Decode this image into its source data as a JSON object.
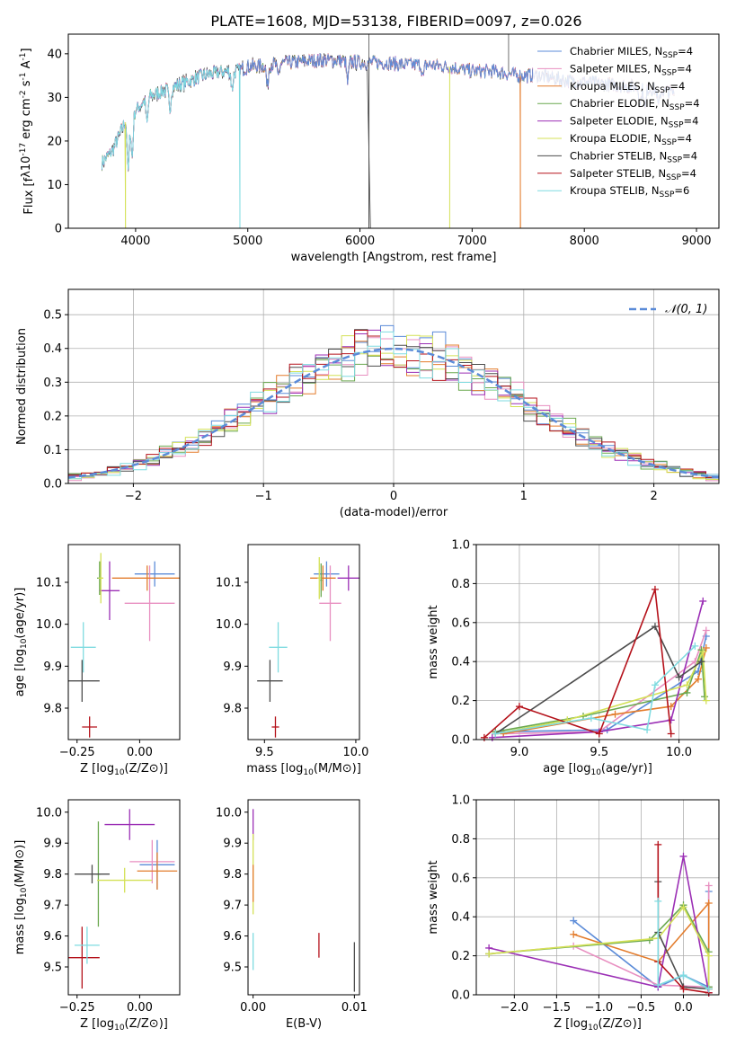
{
  "figure_title": "PLATE=1608, MJD=53138, FIBERID=0097, z=0.026",
  "colors": {
    "chabrier_miles": "#5b8bd8",
    "salpeter_miles": "#e88fc0",
    "kroupa_miles": "#e37c2c",
    "chabrier_elodie": "#6aa84f",
    "salpeter_elodie": "#9b2fb5",
    "kroupa_elodie": "#d4e157",
    "chabrier_stelib": "#4d4d4d",
    "salpeter_stelib": "#b5121b",
    "kroupa_stelib": "#7fdbe0",
    "gaussian": "#5b8bd8"
  },
  "chart_data": [
    {
      "id": "spectrum",
      "type": "line",
      "xlabel": "wavelength [Angstrom, rest frame]",
      "ylabel": "Flux [f_λ10^{-17} erg cm^{-2} s^{-1} A^{-1}]",
      "xlim": [
        3400,
        9200
      ],
      "ylim": [
        0,
        44.5
      ],
      "xticks": [
        4000,
        5000,
        6000,
        7000,
        8000,
        9000
      ],
      "yticks": [
        0,
        10,
        20,
        30,
        40
      ],
      "legend_position": "top-right",
      "series": [
        {
          "name": "Chabrier MILES, N_SSP=4",
          "color_key": "chabrier_miles"
        },
        {
          "name": "Salpeter MILES, N_SSP=4",
          "color_key": "salpeter_miles"
        },
        {
          "name": "Kroupa MILES, N_SSP=4",
          "color_key": "kroupa_miles"
        },
        {
          "name": "Chabrier ELODIE, N_SSP=4",
          "color_key": "chabrier_elodie"
        },
        {
          "name": "Salpeter ELODIE, N_SSP=4",
          "color_key": "salpeter_elodie"
        },
        {
          "name": "Kroupa ELODIE, N_SSP=4",
          "color_key": "kroupa_elodie"
        },
        {
          "name": "Chabrier STELIB, N_SSP=4",
          "color_key": "chabrier_stelib"
        },
        {
          "name": "Salpeter STELIB, N_SSP=4",
          "color_key": "salpeter_stelib"
        },
        {
          "name": "Kroupa STELIB, N_SSP=6",
          "color_key": "kroupa_stelib"
        }
      ],
      "continuum": {
        "x": [
          3700,
          3800,
          3900,
          4000,
          4100,
          4200,
          4300,
          4400,
          4500,
          4600,
          4700,
          4800,
          4900,
          5000,
          5200,
          5400,
          5600,
          5800,
          6000,
          6200,
          6400,
          6600,
          6800,
          7000,
          7200,
          7400,
          7600,
          7800,
          8000,
          8200,
          8400,
          8600,
          8800
        ],
        "y": [
          15,
          18,
          24,
          27,
          30,
          31,
          32,
          33,
          34,
          35,
          35.5,
          36,
          36,
          37,
          37.5,
          38,
          38.5,
          38.5,
          38,
          38,
          37.5,
          37.5,
          37,
          36,
          36,
          35,
          35,
          34,
          33.5,
          33,
          32.5,
          32,
          31
        ]
      },
      "dropouts": [
        {
          "x": 3910,
          "color_key": "kroupa_elodie"
        },
        {
          "x": 4930,
          "color_key": "kroupa_stelib"
        },
        {
          "x": 6080,
          "color_key": "chabrier_stelib"
        },
        {
          "x": 6800,
          "color_key": "kroupa_elodie"
        },
        {
          "x": 7430,
          "color_key": "kroupa_miles"
        }
      ]
    },
    {
      "id": "residual_histogram",
      "type": "histogram",
      "xlabel": "(data-model)/error",
      "ylabel": "Normed distribution",
      "xlim": [
        -2.5,
        2.5
      ],
      "ylim": [
        0,
        0.575
      ],
      "xticks": [
        -2,
        -1,
        0,
        1,
        2
      ],
      "yticks": [
        0.0,
        0.1,
        0.2,
        0.3,
        0.4,
        0.5
      ],
      "grid": true,
      "legend_position": "top-right",
      "reference_curve": {
        "name": "𝒩(0, 1)",
        "mean": 0,
        "sigma": 1,
        "style": "dashed",
        "color_key": "gaussian"
      },
      "bin_width": 0.1
    },
    {
      "id": "age_vs_Z",
      "type": "errorbar",
      "xlabel": "Z [log10(Z/Z⊙)]",
      "ylabel": "age  [log10(age/yr)]",
      "xlim": [
        -0.285,
        0.16
      ],
      "ylim": [
        9.725,
        10.19
      ],
      "xticks": [
        -0.25,
        0.0
      ],
      "yticks": [
        9.8,
        9.9,
        10.0,
        10.1
      ],
      "points": [
        {
          "color_key": "chabrier_miles",
          "x": 0.06,
          "y": 10.12,
          "xerr": 0.08,
          "yerr": 0.03
        },
        {
          "color_key": "salpeter_miles",
          "x": 0.04,
          "y": 10.05,
          "xerr": 0.1,
          "yerr": 0.09
        },
        {
          "color_key": "kroupa_miles",
          "x": 0.03,
          "y": 10.11,
          "xerr": 0.14,
          "yerr": 0.03
        },
        {
          "color_key": "chabrier_elodie",
          "x": -0.16,
          "y": 10.11,
          "xerr": 0.01,
          "yerr": 0.04
        },
        {
          "color_key": "salpeter_elodie",
          "x": -0.12,
          "y": 10.08,
          "xerr": 0.04,
          "yerr": 0.07
        },
        {
          "color_key": "kroupa_elodie",
          "x": -0.155,
          "y": 10.11,
          "xerr": 0.01,
          "yerr": 0.06
        },
        {
          "color_key": "chabrier_stelib",
          "x": -0.23,
          "y": 9.865,
          "xerr": 0.07,
          "yerr": 0.05
        },
        {
          "color_key": "salpeter_stelib",
          "x": -0.2,
          "y": 9.755,
          "xerr": 0.03,
          "yerr": 0.025
        },
        {
          "color_key": "kroupa_stelib",
          "x": -0.225,
          "y": 9.945,
          "xerr": 0.05,
          "yerr": 0.06
        }
      ]
    },
    {
      "id": "age_vs_mass",
      "type": "errorbar",
      "xlabel": "mass [log10(M/M⊙)]",
      "ylabel": "",
      "xlim": [
        9.41,
        10.02
      ],
      "ylim": [
        9.725,
        10.19
      ],
      "xticks": [
        9.5,
        10.0
      ],
      "yticks": [
        9.8,
        9.9,
        10.0,
        10.1
      ],
      "points": [
        {
          "color_key": "chabrier_miles",
          "x": 9.84,
          "y": 10.12,
          "xerr": 0.07,
          "yerr": 0.03
        },
        {
          "color_key": "salpeter_miles",
          "x": 9.86,
          "y": 10.05,
          "xerr": 0.06,
          "yerr": 0.09
        },
        {
          "color_key": "kroupa_miles",
          "x": 9.82,
          "y": 10.11,
          "xerr": 0.07,
          "yerr": 0.03
        },
        {
          "color_key": "chabrier_elodie",
          "x": 9.81,
          "y": 10.105,
          "xerr": 0.005,
          "yerr": 0.04
        },
        {
          "color_key": "salpeter_elodie",
          "x": 9.96,
          "y": 10.11,
          "xerr": 0.06,
          "yerr": 0.03
        },
        {
          "color_key": "kroupa_elodie",
          "x": 9.8,
          "y": 10.11,
          "xerr": 0.01,
          "yerr": 0.05
        },
        {
          "color_key": "chabrier_stelib",
          "x": 9.53,
          "y": 9.865,
          "xerr": 0.07,
          "yerr": 0.05
        },
        {
          "color_key": "salpeter_stelib",
          "x": 9.56,
          "y": 9.755,
          "xerr": 0.02,
          "yerr": 0.025
        },
        {
          "color_key": "kroupa_stelib",
          "x": 9.575,
          "y": 9.945,
          "xerr": 0.05,
          "yerr": 0.06
        }
      ]
    },
    {
      "id": "mass_weight_vs_age",
      "type": "line",
      "xlabel": "age  [log10(age/yr)]",
      "ylabel": "mass weight",
      "xlim": [
        8.73,
        10.25
      ],
      "ylim": [
        0,
        1.0
      ],
      "xticks": [
        9.0,
        9.5,
        10.0
      ],
      "yticks": [
        0.0,
        0.2,
        0.4,
        0.6,
        0.8,
        1.0
      ],
      "grid": true,
      "series": [
        {
          "color_key": "chabrier_miles",
          "x": [
            8.9,
            9.55,
            10.12,
            10.17
          ],
          "y": [
            0.04,
            0.05,
            0.35,
            0.53
          ]
        },
        {
          "color_key": "salpeter_miles",
          "x": [
            8.9,
            9.5,
            10.1,
            10.17
          ],
          "y": [
            0.03,
            0.04,
            0.4,
            0.56
          ]
        },
        {
          "color_key": "kroupa_miles",
          "x": [
            8.9,
            9.6,
            9.95,
            10.12,
            10.17
          ],
          "y": [
            0.03,
            0.13,
            0.17,
            0.31,
            0.47
          ]
        },
        {
          "color_key": "chabrier_elodie",
          "x": [
            8.85,
            9.4,
            10.05,
            10.14,
            10.16
          ],
          "y": [
            0.04,
            0.12,
            0.24,
            0.46,
            0.22
          ]
        },
        {
          "color_key": "salpeter_elodie",
          "x": [
            8.83,
            9.5,
            9.95,
            10.15
          ],
          "y": [
            0.01,
            0.04,
            0.1,
            0.71
          ]
        },
        {
          "color_key": "kroupa_elodie",
          "x": [
            8.85,
            9.3,
            10.05,
            10.15,
            10.17
          ],
          "y": [
            0.03,
            0.1,
            0.28,
            0.45,
            0.2
          ]
        },
        {
          "color_key": "chabrier_stelib",
          "x": [
            8.85,
            9.85,
            10.0,
            10.14
          ],
          "y": [
            0.03,
            0.58,
            0.32,
            0.4
          ]
        },
        {
          "color_key": "salpeter_stelib",
          "x": [
            8.78,
            9.0,
            9.5,
            9.85,
            9.95
          ],
          "y": [
            0.01,
            0.17,
            0.03,
            0.77,
            0.03
          ]
        },
        {
          "color_key": "kroupa_stelib",
          "x": [
            8.85,
            9.45,
            9.8,
            9.85,
            10.1
          ],
          "y": [
            0.03,
            0.11,
            0.05,
            0.28,
            0.48
          ]
        }
      ]
    },
    {
      "id": "mass_vs_Z",
      "type": "errorbar",
      "xlabel": "Z [log10(Z/Z⊙)]",
      "ylabel": "mass [log10(M/M⊙)]",
      "xlim": [
        -0.285,
        0.16
      ],
      "ylim": [
        9.41,
        10.04
      ],
      "xticks": [
        -0.25,
        0.0
      ],
      "yticks": [
        9.5,
        9.6,
        9.7,
        9.8,
        9.9,
        10.0
      ],
      "points": [
        {
          "color_key": "chabrier_miles",
          "x": 0.07,
          "y": 9.83,
          "xerr": 0.07,
          "yerr": 0.08
        },
        {
          "color_key": "salpeter_miles",
          "x": 0.05,
          "y": 9.84,
          "xerr": 0.09,
          "yerr": 0.07
        },
        {
          "color_key": "kroupa_miles",
          "x": 0.07,
          "y": 9.81,
          "xerr": 0.08,
          "yerr": 0.06
        },
        {
          "color_key": "chabrier_elodie",
          "x": -0.165,
          "y": 9.8,
          "xerr": 0.01,
          "yerr": 0.17
        },
        {
          "color_key": "salpeter_elodie",
          "x": -0.04,
          "y": 9.96,
          "xerr": 0.1,
          "yerr": 0.05
        },
        {
          "color_key": "kroupa_elodie",
          "x": -0.06,
          "y": 9.78,
          "xerr": 0.11,
          "yerr": 0.04
        },
        {
          "color_key": "chabrier_stelib",
          "x": -0.19,
          "y": 9.8,
          "xerr": 0.07,
          "yerr": 0.03
        },
        {
          "color_key": "salpeter_stelib",
          "x": -0.23,
          "y": 9.53,
          "xerr": 0.07,
          "yerr": 0.1
        },
        {
          "color_key": "kroupa_stelib",
          "x": -0.21,
          "y": 9.57,
          "xerr": 0.05,
          "yerr": 0.06
        }
      ]
    },
    {
      "id": "mass_vs_ebv",
      "type": "errorbar",
      "xlabel": "E(B-V)",
      "ylabel": "",
      "xlim": [
        -0.0005,
        0.0105
      ],
      "ylim": [
        9.41,
        10.04
      ],
      "xticks": [
        0.0,
        0.01
      ],
      "yticks": [
        9.5,
        9.6,
        9.7,
        9.8,
        9.9,
        10.0
      ],
      "points": [
        {
          "color_key": "salpeter_elodie",
          "x": 0.0,
          "y": 9.96,
          "xerr": 0,
          "yerr": 0.05
        },
        {
          "color_key": "kroupa_elodie",
          "x": 0.0,
          "y": 9.8,
          "xerr": 0,
          "yerr": 0.13
        },
        {
          "color_key": "kroupa_miles",
          "x": 0.0,
          "y": 9.77,
          "xerr": 0,
          "yerr": 0.06
        },
        {
          "color_key": "kroupa_stelib",
          "x": 0.0,
          "y": 9.55,
          "xerr": 0,
          "yerr": 0.06
        },
        {
          "color_key": "salpeter_stelib",
          "x": 0.0065,
          "y": 9.57,
          "xerr": 0,
          "yerr": 0.04
        },
        {
          "color_key": "chabrier_stelib",
          "x": 0.01,
          "y": 9.5,
          "xerr": 0,
          "yerr": 0.08
        }
      ]
    },
    {
      "id": "mass_weight_vs_Z",
      "type": "line",
      "xlabel": "Z [log10(Z/Z⊙)]",
      "ylabel": "mass weight",
      "xlim": [
        -2.45,
        0.42
      ],
      "ylim": [
        0,
        1.0
      ],
      "xticks": [
        -2.0,
        -1.5,
        -1.0,
        -0.5,
        0.0
      ],
      "yticks": [
        0.0,
        0.2,
        0.4,
        0.6,
        0.8,
        1.0
      ],
      "grid": true,
      "series": [
        {
          "color_key": "chabrier_miles",
          "x": [
            -1.3,
            -0.3,
            0.0,
            0.3,
            0.3
          ],
          "y": [
            0.38,
            0.04,
            0.1,
            0.04,
            0.53
          ]
        },
        {
          "color_key": "salpeter_miles",
          "x": [
            -2.3,
            -1.3,
            -0.3,
            0.3,
            0.3
          ],
          "y": [
            0.21,
            0.25,
            0.05,
            0.04,
            0.56
          ]
        },
        {
          "color_key": "kroupa_miles",
          "x": [
            -1.3,
            -0.3,
            0.3,
            0.3
          ],
          "y": [
            0.31,
            0.17,
            0.47,
            0.03
          ]
        },
        {
          "color_key": "chabrier_elodie",
          "x": [
            -2.3,
            -0.4,
            0.0,
            0.3,
            0.3
          ],
          "y": [
            0.21,
            0.28,
            0.46,
            0.22,
            0.04
          ]
        },
        {
          "color_key": "salpeter_elodie",
          "x": [
            -2.3,
            -0.3,
            0.0,
            0.3
          ],
          "y": [
            0.24,
            0.04,
            0.71,
            0.01
          ]
        },
        {
          "color_key": "kroupa_elodie",
          "x": [
            -2.3,
            -0.3,
            0.0,
            0.3,
            0.3
          ],
          "y": [
            0.21,
            0.29,
            0.45,
            0.2,
            0.03
          ]
        },
        {
          "color_key": "chabrier_stelib",
          "x": [
            -0.3,
            -0.3,
            0.0,
            0.3
          ],
          "y": [
            0.58,
            0.32,
            0.04,
            0.03
          ]
        },
        {
          "color_key": "salpeter_stelib",
          "x": [
            -0.3,
            -0.3,
            0.0,
            0.3
          ],
          "y": [
            0.77,
            0.17,
            0.03,
            0.01
          ]
        },
        {
          "color_key": "kroupa_stelib",
          "x": [
            -0.3,
            -0.3,
            0.0,
            0.3
          ],
          "y": [
            0.48,
            0.05,
            0.1,
            0.03
          ]
        }
      ]
    }
  ]
}
